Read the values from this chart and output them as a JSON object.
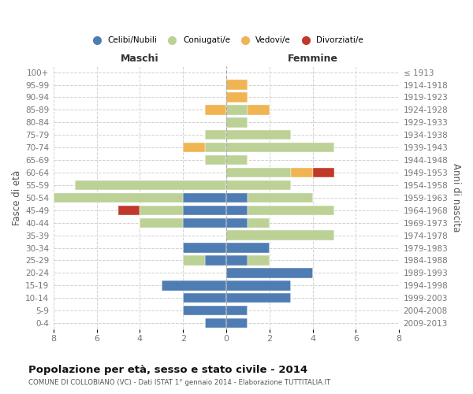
{
  "age_groups": [
    "0-4",
    "5-9",
    "10-14",
    "15-19",
    "20-24",
    "25-29",
    "30-34",
    "35-39",
    "40-44",
    "45-49",
    "50-54",
    "55-59",
    "60-64",
    "65-69",
    "70-74",
    "75-79",
    "80-84",
    "85-89",
    "90-94",
    "95-99",
    "100+"
  ],
  "birth_years": [
    "2009-2013",
    "2004-2008",
    "1999-2003",
    "1994-1998",
    "1989-1993",
    "1984-1988",
    "1979-1983",
    "1974-1978",
    "1969-1973",
    "1964-1968",
    "1959-1963",
    "1954-1958",
    "1949-1953",
    "1944-1948",
    "1939-1943",
    "1934-1938",
    "1929-1933",
    "1924-1928",
    "1919-1923",
    "1914-1918",
    "≤ 1913"
  ],
  "maschi_celibi": [
    1,
    2,
    2,
    3,
    0,
    1,
    2,
    0,
    2,
    2,
    2,
    0,
    0,
    0,
    0,
    0,
    0,
    0,
    0,
    0,
    0
  ],
  "maschi_coniugati": [
    0,
    0,
    0,
    0,
    0,
    1,
    0,
    0,
    2,
    2,
    6,
    7,
    0,
    1,
    1,
    1,
    0,
    0,
    0,
    0,
    0
  ],
  "maschi_vedovi": [
    0,
    0,
    0,
    0,
    0,
    0,
    0,
    0,
    0,
    0,
    0,
    0,
    0,
    0,
    1,
    0,
    0,
    1,
    0,
    0,
    0
  ],
  "maschi_divorziati": [
    0,
    0,
    0,
    0,
    0,
    0,
    0,
    0,
    0,
    1,
    0,
    0,
    0,
    0,
    0,
    0,
    0,
    0,
    0,
    0,
    0
  ],
  "femmine_nubili": [
    1,
    1,
    3,
    3,
    4,
    1,
    2,
    0,
    1,
    1,
    1,
    0,
    0,
    0,
    0,
    0,
    0,
    0,
    0,
    0,
    0
  ],
  "femmine_coniugate": [
    0,
    0,
    0,
    0,
    0,
    1,
    0,
    5,
    1,
    4,
    3,
    3,
    3,
    1,
    5,
    3,
    1,
    1,
    0,
    0,
    0
  ],
  "femmine_vedove": [
    0,
    0,
    0,
    0,
    0,
    0,
    0,
    0,
    0,
    0,
    0,
    0,
    1,
    0,
    0,
    0,
    0,
    1,
    1,
    1,
    0
  ],
  "femmine_divorziate": [
    0,
    0,
    0,
    0,
    0,
    0,
    0,
    0,
    0,
    0,
    0,
    0,
    1,
    0,
    0,
    0,
    0,
    0,
    0,
    0,
    0
  ],
  "color_celibi": "#4f7db3",
  "color_coniugati": "#bcd196",
  "color_vedovi": "#f0b452",
  "color_divorziati": "#c0392b",
  "xlim": 8,
  "title": "Popolazione per età, sesso e stato civile - 2014",
  "subtitle": "COMUNE DI COLLOBIANO (VC) - Dati ISTAT 1° gennaio 2014 - Elaborazione TUTTITALIA.IT",
  "label_maschi": "Maschi",
  "label_femmine": "Femmine",
  "ylabel_left": "Fasce di età",
  "ylabel_right": "Anni di nascita",
  "legend_labels": [
    "Celibi/Nubili",
    "Coniugati/e",
    "Vedovi/e",
    "Divorziati/e"
  ],
  "bg_color": "#ffffff",
  "grid_color": "#cccccc",
  "tick_color": "#777777"
}
